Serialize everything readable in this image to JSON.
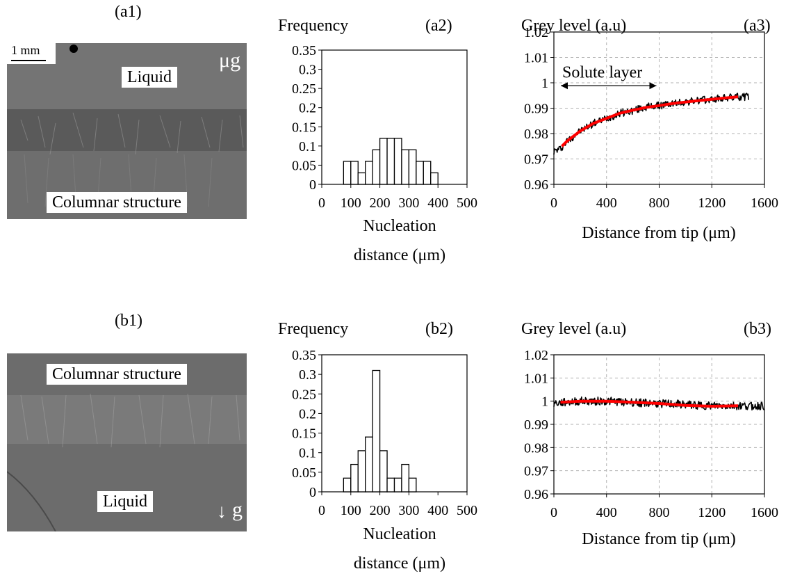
{
  "panels": {
    "a1": {
      "label": "(a1)",
      "scale_text": "1 mm",
      "top_label": "Liquid",
      "bottom_label": "Columnar structure",
      "gravity_text": "μg"
    },
    "b1": {
      "label": "(b1)",
      "top_label": "Columnar structure",
      "bottom_label": "Liquid",
      "gravity_arrow": "↓",
      "gravity_text": "g"
    }
  },
  "chart_data": [
    {
      "id": "a2",
      "type": "bar",
      "panel_label": "(a2)",
      "ylabel": "Frequency",
      "xlabel": [
        "Nucleation",
        "distance (μm)"
      ],
      "xlim": [
        0,
        500
      ],
      "ylim": [
        0,
        0.35
      ],
      "xticks": [
        0,
        100,
        200,
        300,
        400,
        500
      ],
      "yticks": [
        0,
        0.05,
        0.1,
        0.15,
        0.2,
        0.25,
        0.3,
        0.35
      ],
      "bins": [
        [
          75,
          100
        ],
        [
          100,
          125
        ],
        [
          125,
          150
        ],
        [
          150,
          175
        ],
        [
          175,
          200
        ],
        [
          200,
          225
        ],
        [
          225,
          250
        ],
        [
          250,
          275
        ],
        [
          275,
          300
        ],
        [
          300,
          325
        ],
        [
          325,
          350
        ],
        [
          350,
          375
        ],
        [
          375,
          400
        ]
      ],
      "values": [
        0.06,
        0.06,
        0.03,
        0.06,
        0.09,
        0.12,
        0.12,
        0.12,
        0.09,
        0.09,
        0.06,
        0.06,
        0.03
      ]
    },
    {
      "id": "b2",
      "type": "bar",
      "panel_label": "(b2)",
      "ylabel": "Frequency",
      "xlabel": [
        "Nucleation",
        "distance (μm)"
      ],
      "xlim": [
        0,
        500
      ],
      "ylim": [
        0,
        0.35
      ],
      "xticks": [
        0,
        100,
        200,
        300,
        400,
        500
      ],
      "yticks": [
        0,
        0.05,
        0.1,
        0.15,
        0.2,
        0.25,
        0.3,
        0.35
      ],
      "bins": [
        [
          75,
          100
        ],
        [
          100,
          125
        ],
        [
          125,
          150
        ],
        [
          150,
          175
        ],
        [
          175,
          200
        ],
        [
          200,
          225
        ],
        [
          225,
          250
        ],
        [
          250,
          275
        ],
        [
          275,
          300
        ],
        [
          300,
          325
        ]
      ],
      "values": [
        0.035,
        0.07,
        0.105,
        0.14,
        0.31,
        0.105,
        0.035,
        0.035,
        0.07,
        0.035
      ]
    },
    {
      "id": "a3",
      "type": "line",
      "panel_label": "(a3)",
      "ylabel": "Grey level (a.u)",
      "xlabel": "Distance from tip (μm)",
      "xlim": [
        0,
        1600
      ],
      "ylim": [
        0.96,
        1.02
      ],
      "xticks": [
        0,
        400,
        800,
        1200,
        1600
      ],
      "yticks": [
        0.96,
        0.97,
        0.98,
        0.99,
        1,
        1.01,
        1.02
      ],
      "grid": true,
      "annotation": {
        "text": "Solute layer",
        "x_start": 0,
        "x_end": 800,
        "y": 0.995
      },
      "series": [
        {
          "color": "#000000",
          "noise": 0.0015,
          "x": [
            0,
            50,
            100,
            200,
            300,
            400,
            500,
            600,
            700,
            800,
            900,
            1000,
            1100,
            1200,
            1300,
            1400,
            1480
          ],
          "y": [
            0.973,
            0.974,
            0.977,
            0.981,
            0.984,
            0.986,
            0.988,
            0.989,
            0.9905,
            0.991,
            0.9918,
            0.9925,
            0.993,
            0.9935,
            0.994,
            0.9945,
            0.9945
          ]
        },
        {
          "color": "#ff0000",
          "x": [
            60,
            100,
            200,
            300,
            400,
            500,
            600,
            700,
            800,
            900,
            1000,
            1100,
            1200,
            1300,
            1400
          ],
          "y": [
            0.975,
            0.977,
            0.981,
            0.984,
            0.986,
            0.988,
            0.9892,
            0.9903,
            0.991,
            0.9918,
            0.9924,
            0.993,
            0.9935,
            0.994,
            0.9945
          ]
        }
      ]
    },
    {
      "id": "b3",
      "type": "line",
      "panel_label": "(b3)",
      "ylabel": "Grey level (a.u)",
      "xlabel": "Distance from tip (μm)",
      "xlim": [
        0,
        1600
      ],
      "ylim": [
        0.96,
        1.02
      ],
      "xticks": [
        0,
        400,
        800,
        1200,
        1600
      ],
      "yticks": [
        0.96,
        0.97,
        0.98,
        0.99,
        1,
        1.01,
        1.02
      ],
      "grid": true,
      "series": [
        {
          "color": "#000000",
          "noise": 0.0018,
          "x": [
            0,
            200,
            400,
            600,
            800,
            1000,
            1200,
            1400,
            1600
          ],
          "y": [
            0.999,
            1.0,
            1.0,
            0.9995,
            0.999,
            0.9985,
            0.998,
            0.998,
            0.998
          ]
        },
        {
          "color": "#ff0000",
          "x": [
            50,
            200,
            400,
            600,
            800,
            1000,
            1200,
            1400
          ],
          "y": [
            0.9995,
            1.0,
            1.0,
            0.9995,
            0.999,
            0.9982,
            0.9978,
            0.998
          ]
        }
      ]
    }
  ]
}
